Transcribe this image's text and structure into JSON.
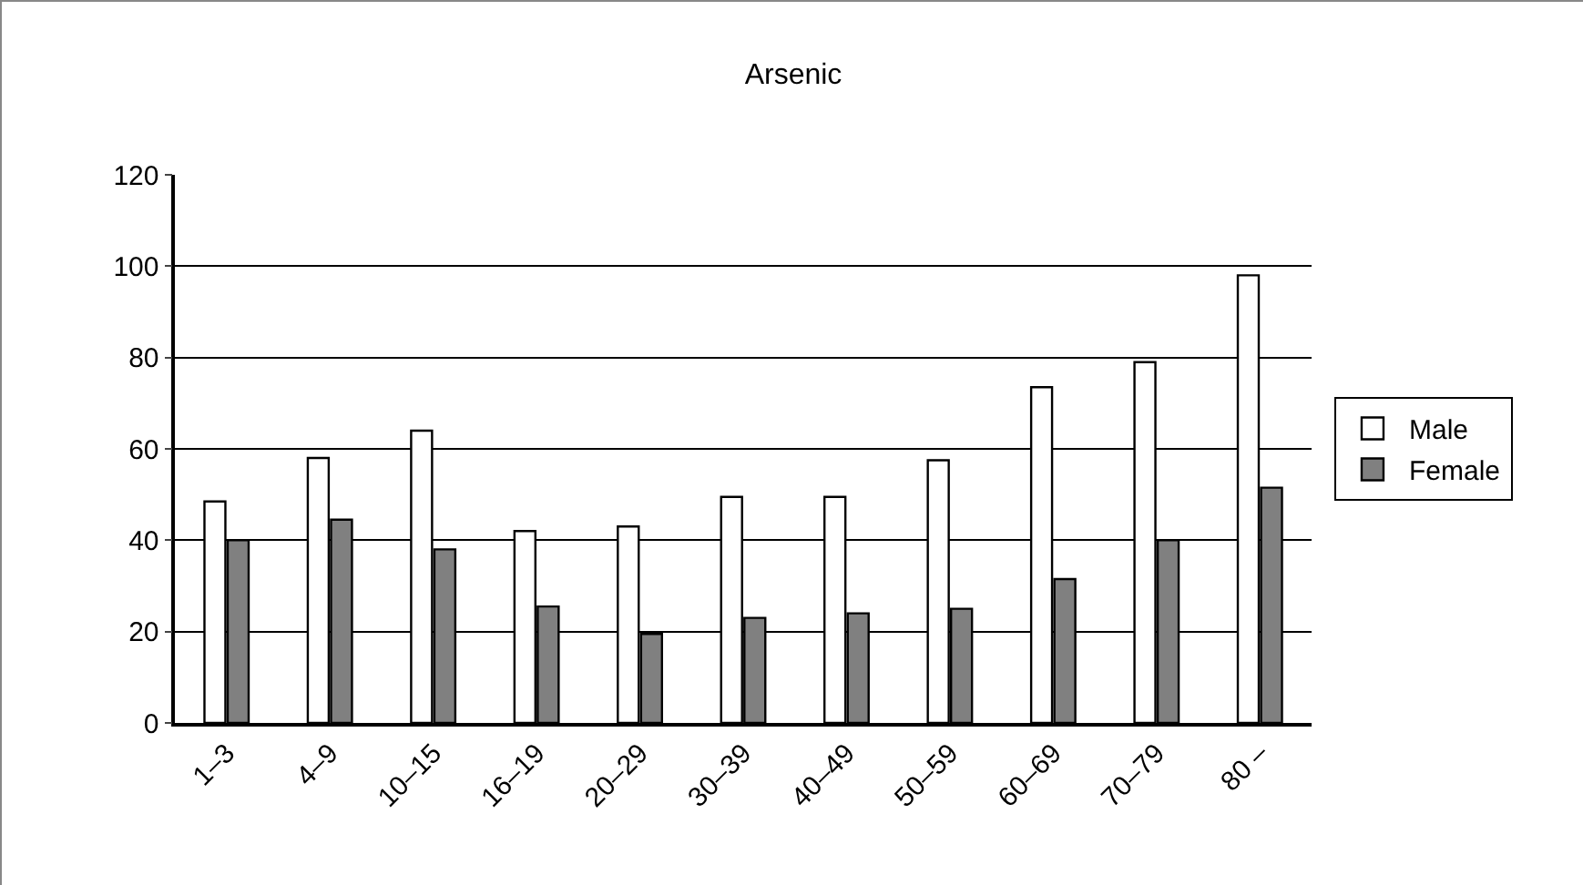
{
  "chart_data": {
    "type": "bar",
    "title": "Arsenic",
    "categories": [
      "1–3",
      "4–9",
      "10–15",
      "16–19",
      "20–29",
      "30–39",
      "40–49",
      "50–59",
      "60–69",
      "70–79",
      "80 –"
    ],
    "series": [
      {
        "name": "Male",
        "color": "#ffffff",
        "values": [
          48.5,
          58,
          64,
          42,
          43,
          49.5,
          49.5,
          57.5,
          73.5,
          79,
          98
        ]
      },
      {
        "name": "Female",
        "color": "#808080",
        "values": [
          40,
          44.5,
          38,
          25.5,
          19.5,
          23,
          24,
          25,
          31.5,
          40,
          51.5
        ]
      }
    ],
    "ylim": [
      0,
      120
    ],
    "yticks": [
      0,
      20,
      40,
      60,
      80,
      100,
      120
    ],
    "grid": "y",
    "legend": "right"
  }
}
